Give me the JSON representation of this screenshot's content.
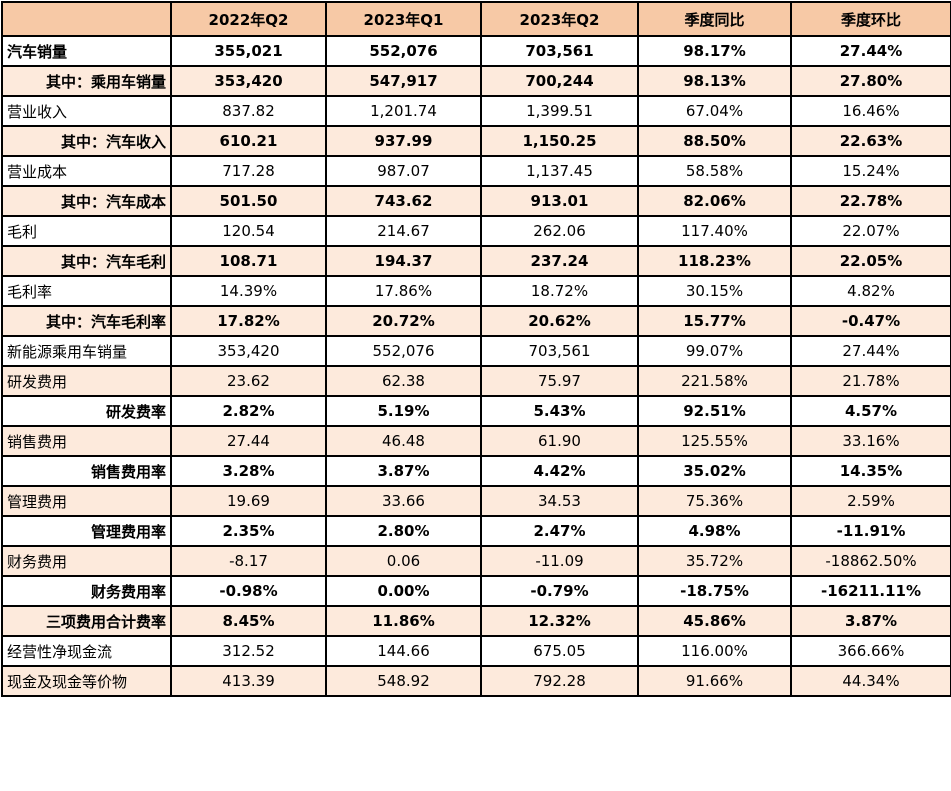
{
  "table": {
    "headers": [
      "",
      "2022年Q2",
      "2023年Q1",
      "2023年Q2",
      "季度同比",
      "季度环比"
    ],
    "rows": [
      {
        "label": "汽车销量",
        "values": [
          "355,021",
          "552,076",
          "703,561",
          "98.17%",
          "27.44%"
        ],
        "bold": true,
        "shade": false,
        "indent": false
      },
      {
        "label": "其中：乘用车销量",
        "values": [
          "353,420",
          "547,917",
          "700,244",
          "98.13%",
          "27.80%"
        ],
        "bold": true,
        "shade": true,
        "indent": true
      },
      {
        "label": "营业收入",
        "values": [
          "837.82",
          "1,201.74",
          "1,399.51",
          "67.04%",
          "16.46%"
        ],
        "bold": false,
        "shade": false,
        "indent": false
      },
      {
        "label": "其中：汽车收入",
        "values": [
          "610.21",
          "937.99",
          "1,150.25",
          "88.50%",
          "22.63%"
        ],
        "bold": true,
        "shade": true,
        "indent": true
      },
      {
        "label": "营业成本",
        "values": [
          "717.28",
          "987.07",
          "1,137.45",
          "58.58%",
          "15.24%"
        ],
        "bold": false,
        "shade": false,
        "indent": false
      },
      {
        "label": "其中：汽车成本",
        "values": [
          "501.50",
          "743.62",
          "913.01",
          "82.06%",
          "22.78%"
        ],
        "bold": true,
        "shade": true,
        "indent": true
      },
      {
        "label": "毛利",
        "values": [
          "120.54",
          "214.67",
          "262.06",
          "117.40%",
          "22.07%"
        ],
        "bold": false,
        "shade": false,
        "indent": false
      },
      {
        "label": "其中：汽车毛利",
        "values": [
          "108.71",
          "194.37",
          "237.24",
          "118.23%",
          "22.05%"
        ],
        "bold": true,
        "shade": true,
        "indent": true
      },
      {
        "label": "毛利率",
        "values": [
          "14.39%",
          "17.86%",
          "18.72%",
          "30.15%",
          "4.82%"
        ],
        "bold": false,
        "shade": false,
        "indent": false
      },
      {
        "label": "其中：汽车毛利率",
        "values": [
          "17.82%",
          "20.72%",
          "20.62%",
          "15.77%",
          "-0.47%"
        ],
        "bold": true,
        "shade": true,
        "indent": true
      },
      {
        "label": "新能源乘用车销量",
        "values": [
          "353,420",
          "552,076",
          "703,561",
          "99.07%",
          "27.44%"
        ],
        "bold": false,
        "shade": false,
        "indent": false
      },
      {
        "label": "研发费用",
        "values": [
          "23.62",
          "62.38",
          "75.97",
          "221.58%",
          "21.78%"
        ],
        "bold": false,
        "shade": true,
        "indent": false
      },
      {
        "label": "研发费率",
        "values": [
          "2.82%",
          "5.19%",
          "5.43%",
          "92.51%",
          "4.57%"
        ],
        "bold": true,
        "shade": false,
        "indent": true
      },
      {
        "label": "销售费用",
        "values": [
          "27.44",
          "46.48",
          "61.90",
          "125.55%",
          "33.16%"
        ],
        "bold": false,
        "shade": true,
        "indent": false
      },
      {
        "label": "销售费用率",
        "values": [
          "3.28%",
          "3.87%",
          "4.42%",
          "35.02%",
          "14.35%"
        ],
        "bold": true,
        "shade": false,
        "indent": true
      },
      {
        "label": "管理费用",
        "values": [
          "19.69",
          "33.66",
          "34.53",
          "75.36%",
          "2.59%"
        ],
        "bold": false,
        "shade": true,
        "indent": false
      },
      {
        "label": "管理费用率",
        "values": [
          "2.35%",
          "2.80%",
          "2.47%",
          "4.98%",
          "-11.91%"
        ],
        "bold": true,
        "shade": false,
        "indent": true
      },
      {
        "label": "财务费用",
        "values": [
          "-8.17",
          "0.06",
          "-11.09",
          "35.72%",
          "-18862.50%"
        ],
        "bold": false,
        "shade": true,
        "indent": false
      },
      {
        "label": "财务费用率",
        "values": [
          "-0.98%",
          "0.00%",
          "-0.79%",
          "-18.75%",
          "-16211.11%"
        ],
        "bold": true,
        "shade": false,
        "indent": true
      },
      {
        "label": "三项费用合计费率",
        "values": [
          "8.45%",
          "11.86%",
          "12.32%",
          "45.86%",
          "3.87%"
        ],
        "bold": true,
        "shade": true,
        "indent": true
      },
      {
        "label": "经营性净现金流",
        "values": [
          "312.52",
          "144.66",
          "675.05",
          "116.00%",
          "366.66%"
        ],
        "bold": false,
        "shade": false,
        "indent": false
      },
      {
        "label": "现金及现金等价物",
        "values": [
          "413.39",
          "548.92",
          "792.28",
          "91.66%",
          "44.34%"
        ],
        "bold": false,
        "shade": true,
        "indent": false
      }
    ]
  },
  "colors": {
    "header_fill": "#f7c9a6",
    "shaded_row_fill": "#fdeadc",
    "border": "#000000"
  }
}
